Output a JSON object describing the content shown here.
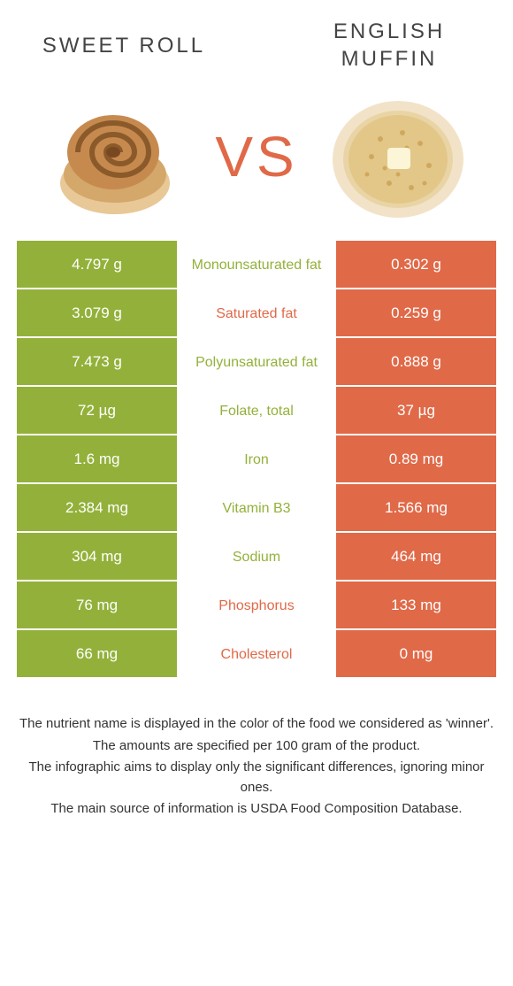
{
  "colors": {
    "left": "#93b13a",
    "right": "#e06948",
    "vs": "#e06948"
  },
  "titles": {
    "left": "SWEET ROLL",
    "right": "ENGLISH MUFFIN",
    "vs": "VS"
  },
  "rows": [
    {
      "label": "Monounsaturated fat",
      "left": "4.797 g",
      "right": "0.302 g",
      "winner": "left"
    },
    {
      "label": "Saturated fat",
      "left": "3.079 g",
      "right": "0.259 g",
      "winner": "right"
    },
    {
      "label": "Polyunsaturated fat",
      "left": "7.473 g",
      "right": "0.888 g",
      "winner": "left"
    },
    {
      "label": "Folate, total",
      "left": "72 µg",
      "right": "37 µg",
      "winner": "left"
    },
    {
      "label": "Iron",
      "left": "1.6 mg",
      "right": "0.89 mg",
      "winner": "left"
    },
    {
      "label": "Vitamin B3",
      "left": "2.384 mg",
      "right": "1.566 mg",
      "winner": "left"
    },
    {
      "label": "Sodium",
      "left": "304 mg",
      "right": "464 mg",
      "winner": "left"
    },
    {
      "label": "Phosphorus",
      "left": "76 mg",
      "right": "133 mg",
      "winner": "right"
    },
    {
      "label": "Cholesterol",
      "left": "66 mg",
      "right": "0 mg",
      "winner": "right"
    }
  ],
  "footer": [
    "The nutrient name is displayed in the color of the food we considered as 'winner'.",
    "The amounts are specified per 100 gram of the product.",
    "The infographic aims to display only the significant differences, ignoring minor ones.",
    "The main source of information is USDA Food Composition Database."
  ]
}
